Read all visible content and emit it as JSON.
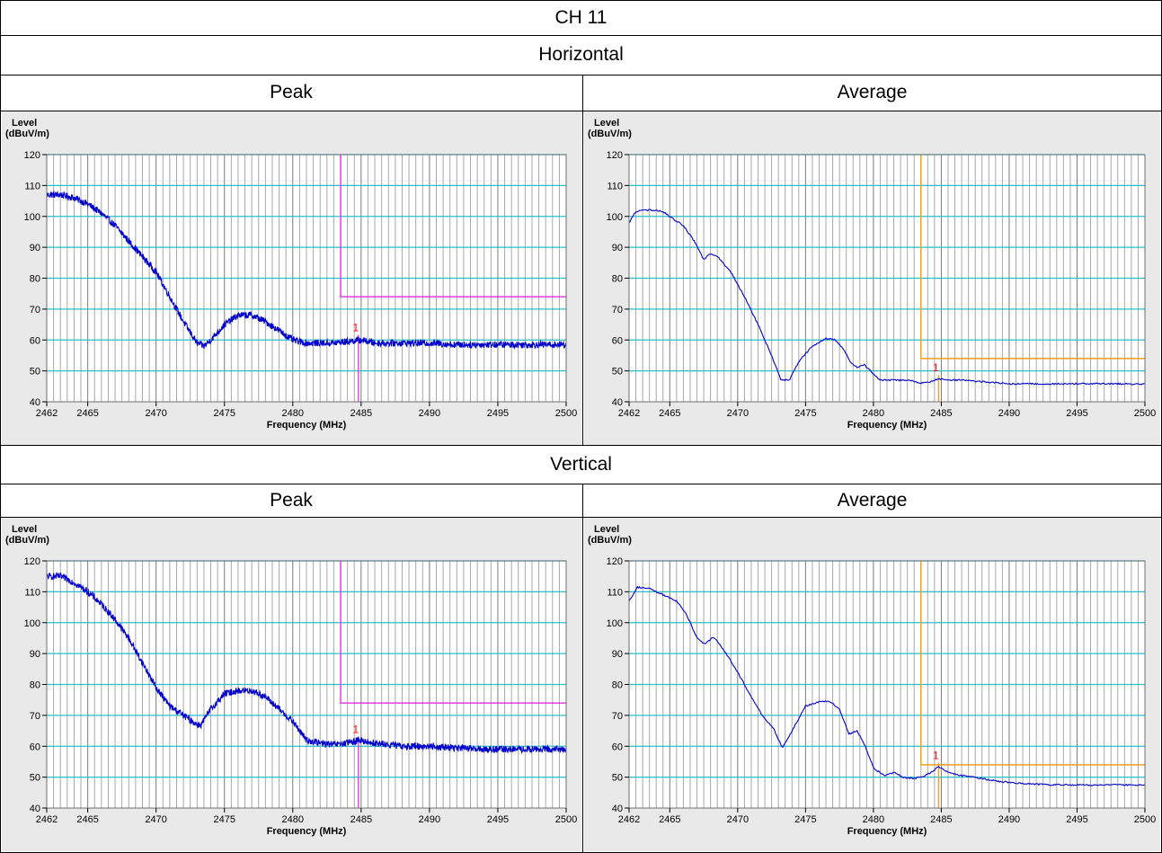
{
  "title": "CH 11",
  "sections": [
    {
      "label": "Horizontal",
      "columns": [
        "Peak",
        "Average"
      ]
    },
    {
      "label": "Vertical",
      "columns": [
        "Peak",
        "Average"
      ]
    }
  ],
  "colors": {
    "trace": "#0000cc",
    "grid_major": "#26c0c9",
    "grid_minor": "#a8a8a8",
    "peak_limit": "#e040e0",
    "average_limit": "#f0a020",
    "marker": "#ff0000",
    "plot_bg": "#ffffff",
    "panel_bg": "#e9e9e9"
  },
  "chart_data": [
    {
      "type": "line",
      "panel": "Horizontal Peak",
      "ylabel": "Level\n(dBuV/m)",
      "xlabel": "Frequency (MHz)",
      "xlim": [
        2462,
        2500
      ],
      "ylim": [
        40,
        120
      ],
      "xticks": [
        2462,
        2465,
        2470,
        2475,
        2480,
        2485,
        2490,
        2495,
        2500
      ],
      "yticks": [
        40,
        50,
        60,
        70,
        80,
        90,
        100,
        110,
        120
      ],
      "grid": true,
      "noisy": true,
      "series": [
        {
          "x": [
            2462,
            2463,
            2464,
            2465,
            2466,
            2467,
            2468,
            2469,
            2470,
            2471,
            2472,
            2473,
            2473.5,
            2474,
            2475,
            2476,
            2477,
            2478,
            2479,
            2480,
            2481,
            2482,
            2483,
            2484,
            2485,
            2486,
            2488,
            2490,
            2492,
            2494,
            2496,
            2498,
            2500
          ],
          "y": [
            107,
            107,
            106,
            104,
            101,
            97,
            92,
            87,
            82,
            74,
            66,
            59,
            58,
            60,
            65,
            68,
            68,
            66,
            63,
            60,
            59,
            59,
            59,
            59.5,
            60,
            59,
            59,
            59,
            58.5,
            58.5,
            58.5,
            58.5,
            58.5
          ]
        }
      ],
      "limit": {
        "start_x": 2483.5,
        "level": 74
      },
      "marker": {
        "label": "1",
        "x": 2484.8,
        "y": 60.5
      }
    },
    {
      "type": "line",
      "panel": "Horizontal Average",
      "ylabel": "Level\n(dBuV/m)",
      "xlabel": "Frequency (MHz)",
      "xlim": [
        2462,
        2500
      ],
      "ylim": [
        40,
        120
      ],
      "xticks": [
        2462,
        2465,
        2470,
        2475,
        2480,
        2485,
        2490,
        2495,
        2500
      ],
      "yticks": [
        40,
        50,
        60,
        70,
        80,
        90,
        100,
        110,
        120
      ],
      "grid": true,
      "noisy": false,
      "series": [
        {
          "x": [
            2462,
            2462.5,
            2463,
            2464,
            2464.5,
            2465,
            2466,
            2466.8,
            2467.5,
            2468,
            2468.5,
            2469.5,
            2470.5,
            2471.5,
            2472.5,
            2473.2,
            2473.8,
            2474.5,
            2475.5,
            2476.5,
            2477.2,
            2477.8,
            2478.3,
            2478.8,
            2479.3,
            2479.8,
            2480.5,
            2481.5,
            2482.5,
            2483.5,
            2484.2,
            2484.8,
            2485.5,
            2486.5,
            2488,
            2490,
            2492,
            2494,
            2496,
            2498,
            2500
          ],
          "y": [
            98,
            101.5,
            102,
            102,
            101.5,
            100,
            97,
            92,
            86,
            88,
            87,
            82,
            74,
            65,
            55,
            47,
            47,
            53,
            58,
            60.5,
            60,
            57,
            53,
            51,
            52,
            50,
            47,
            47,
            47,
            46,
            46.5,
            47.5,
            47,
            47,
            46.5,
            45.8,
            45.8,
            45.8,
            45.8,
            45.8,
            45.8
          ]
        }
      ],
      "limit": {
        "start_x": 2483.5,
        "level": 54
      },
      "marker": {
        "label": "1",
        "x": 2484.8,
        "y": 47.5
      }
    },
    {
      "type": "line",
      "panel": "Vertical Peak",
      "ylabel": "Level\n(dBuV/m)",
      "xlabel": "Frequency (MHz)",
      "xlim": [
        2462,
        2500
      ],
      "ylim": [
        40,
        120
      ],
      "xticks": [
        2462,
        2465,
        2470,
        2475,
        2480,
        2485,
        2490,
        2495,
        2500
      ],
      "yticks": [
        40,
        50,
        60,
        70,
        80,
        90,
        100,
        110,
        120
      ],
      "grid": true,
      "noisy": true,
      "series": [
        {
          "x": [
            2462,
            2463,
            2464,
            2465,
            2466,
            2467,
            2468,
            2469,
            2470,
            2471,
            2472,
            2473,
            2473.3,
            2474,
            2475,
            2476,
            2477,
            2478,
            2479,
            2480,
            2481,
            2482,
            2483,
            2484,
            2484.8,
            2486,
            2488,
            2490,
            2492,
            2494,
            2496,
            2498,
            2500
          ],
          "y": [
            115,
            115,
            113,
            110,
            106,
            101,
            95,
            87,
            79,
            73,
            70,
            67,
            67,
            72,
            77,
            78,
            78,
            76,
            72,
            68,
            62,
            61,
            60.5,
            61,
            62,
            61,
            60,
            60,
            59.5,
            59,
            59,
            59,
            59
          ]
        }
      ],
      "limit": {
        "start_x": 2483.5,
        "level": 74
      },
      "marker": {
        "label": "1",
        "x": 2484.8,
        "y": 62
      }
    },
    {
      "type": "line",
      "panel": "Vertical Average",
      "ylabel": "Level\n(dBuV/m)",
      "xlabel": "Frequency (MHz)",
      "xlim": [
        2462,
        2500
      ],
      "ylim": [
        40,
        120
      ],
      "xticks": [
        2462,
        2465,
        2470,
        2475,
        2480,
        2485,
        2490,
        2495,
        2500
      ],
      "yticks": [
        40,
        50,
        60,
        70,
        80,
        90,
        100,
        110,
        120
      ],
      "grid": true,
      "noisy": false,
      "series": [
        {
          "x": [
            2462,
            2462.6,
            2463.5,
            2464.5,
            2465.5,
            2466.2,
            2467,
            2467.6,
            2468.2,
            2469,
            2470,
            2471,
            2471.8,
            2472.6,
            2473.3,
            2474,
            2475,
            2476,
            2476.8,
            2477.5,
            2478.2,
            2478.8,
            2479.4,
            2480,
            2480.8,
            2481.5,
            2482.2,
            2483,
            2483.8,
            2484.4,
            2484.8,
            2485.5,
            2486.5,
            2488,
            2489.5,
            2491,
            2493,
            2495,
            2497,
            2500
          ],
          "y": [
            107,
            111.5,
            111,
            109,
            107,
            103,
            95,
            93,
            95.5,
            91,
            84,
            76,
            70,
            66,
            59.5,
            65,
            73,
            74.5,
            74.5,
            72,
            64,
            65,
            60,
            53,
            50.5,
            51.5,
            50,
            49.5,
            50.5,
            52,
            53.5,
            51.5,
            50.5,
            49.5,
            48.5,
            48,
            47.5,
            47.5,
            47.5,
            47.5
          ]
        }
      ],
      "limit": {
        "start_x": 2483.5,
        "level": 54
      },
      "marker": {
        "label": "1",
        "x": 2484.8,
        "y": 53.5
      }
    }
  ]
}
